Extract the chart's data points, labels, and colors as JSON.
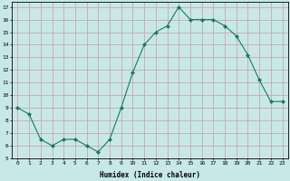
{
  "x": [
    0,
    1,
    2,
    3,
    4,
    5,
    6,
    7,
    8,
    9,
    10,
    11,
    12,
    13,
    14,
    15,
    16,
    17,
    18,
    19,
    20,
    21,
    22,
    23
  ],
  "y": [
    9,
    8.5,
    6.5,
    6,
    6.5,
    6.5,
    6,
    5.5,
    6.5,
    9,
    11.8,
    14,
    15,
    15.5,
    17,
    16,
    16,
    16,
    15.5,
    14.7,
    13.2,
    11.2,
    9.5,
    9.5
  ],
  "line_color": "#1a7a5e",
  "marker_color": "#1a7a5e",
  "bg_color": "#c8e8e8",
  "grid_color": "#c8a8a8",
  "xlabel": "Humidex (Indice chaleur)",
  "xlim": [
    -0.5,
    23.5
  ],
  "ylim": [
    5,
    17.4
  ],
  "yticks": [
    5,
    6,
    7,
    8,
    9,
    10,
    11,
    12,
    13,
    14,
    15,
    16,
    17
  ],
  "xticks": [
    0,
    1,
    2,
    3,
    4,
    5,
    6,
    7,
    8,
    9,
    10,
    11,
    12,
    13,
    14,
    15,
    16,
    17,
    18,
    19,
    20,
    21,
    22,
    23
  ]
}
